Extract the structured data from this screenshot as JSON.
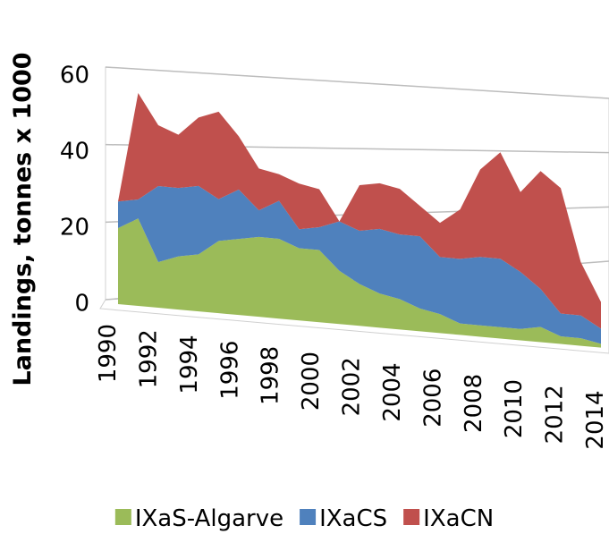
{
  "chart_data": {
    "type": "area",
    "stacked": true,
    "y_label": "Landings, tonnes x 1000",
    "categories": [
      "1990",
      null,
      "1992",
      null,
      "1994",
      null,
      "1996",
      null,
      "1998",
      null,
      "2000",
      null,
      "2002",
      null,
      "2004",
      null,
      "2006",
      null,
      "2008",
      null,
      "2010",
      null,
      "2012",
      null,
      "2014"
    ],
    "series": [
      {
        "name": "IXaS-Algarve",
        "color": "#9bbb59",
        "values": [
          20,
          23,
          12,
          14,
          15,
          19,
          20,
          21,
          21,
          19,
          19,
          14,
          11,
          9,
          8,
          6,
          5,
          3,
          3,
          3,
          3,
          4,
          2,
          2,
          1
        ]
      },
      {
        "name": "IXaCS",
        "color": "#4f81bd",
        "values": [
          7,
          5,
          20,
          18,
          18,
          11,
          13,
          7,
          10,
          5,
          6,
          13,
          14,
          17,
          17,
          19,
          15,
          17,
          18,
          18,
          15,
          10,
          6,
          6,
          4
        ]
      },
      {
        "name": "IXaCN",
        "color": "#c0504d",
        "values": [
          0,
          28,
          16,
          14,
          18,
          23,
          14,
          11,
          7,
          12,
          10,
          0,
          12,
          12,
          12,
          8,
          9,
          13,
          23,
          28,
          21,
          31,
          33,
          14,
          7
        ]
      }
    ],
    "ylim": [
      0,
      60
    ],
    "yticks": [
      0,
      20,
      40,
      60
    ],
    "grid": true,
    "legend": "bottom"
  }
}
